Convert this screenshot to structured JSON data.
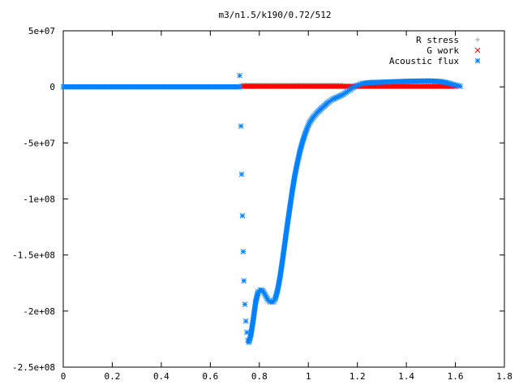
{
  "chart_data": {
    "type": "scatter",
    "title": "m3/n1.5/k190/0.72/512",
    "xlabel": "",
    "ylabel": "",
    "xlim": [
      0,
      1.8
    ],
    "ylim": [
      -250000000,
      50000000
    ],
    "x_ticks": [
      "0",
      "0.2",
      "0.4",
      "0.6",
      "0.8",
      "1",
      "1.2",
      "1.4",
      "1.6",
      "1.8"
    ],
    "y_ticks": [
      "5e+07",
      "0",
      "-5e+07",
      "-1e+08",
      "-1.5e+08",
      "-2e+08",
      "-2.5e+08"
    ],
    "grid": false,
    "legend_position": "top-right",
    "series": [
      {
        "name": "R stress",
        "marker": "plus",
        "color": "#a0a0a0",
        "points": [
          [
            0.73,
            1500000
          ],
          [
            0.8,
            1500000
          ],
          [
            0.9,
            1500000
          ],
          [
            1.0,
            1500000
          ],
          [
            1.1,
            1500000
          ],
          [
            1.14,
            1500000
          ]
        ]
      },
      {
        "name": "G work",
        "marker": "cross",
        "color": "#ff0000",
        "points": [
          [
            0.73,
            500000
          ],
          [
            0.8,
            500000
          ],
          [
            0.9,
            500000
          ],
          [
            1.0,
            500000
          ],
          [
            1.1,
            500000
          ],
          [
            1.2,
            500000
          ],
          [
            1.3,
            500000
          ],
          [
            1.4,
            500000
          ],
          [
            1.5,
            500000
          ],
          [
            1.6,
            500000
          ]
        ]
      },
      {
        "name": "Acoustic flux",
        "marker": "star",
        "color": "#0080ff",
        "points": [
          [
            0.0,
            0
          ],
          [
            0.72,
            0
          ],
          [
            0.72,
            10000000
          ],
          [
            0.725,
            -35000000
          ],
          [
            0.728,
            -78000000
          ],
          [
            0.731,
            -115000000
          ],
          [
            0.734,
            -147000000
          ],
          [
            0.737,
            -173000000
          ],
          [
            0.741,
            -194000000
          ],
          [
            0.745,
            -209000000
          ],
          [
            0.749,
            -219000000
          ],
          [
            0.753,
            -226000000
          ],
          [
            0.757,
            -228000000
          ],
          [
            0.765,
            -222000000
          ],
          [
            0.775,
            -208000000
          ],
          [
            0.785,
            -192000000
          ],
          [
            0.795,
            -183000000
          ],
          [
            0.805,
            -181000000
          ],
          [
            0.815,
            -182000000
          ],
          [
            0.825,
            -186000000
          ],
          [
            0.835,
            -190000000
          ],
          [
            0.845,
            -192000000
          ],
          [
            0.855,
            -192000000
          ],
          [
            0.865,
            -189000000
          ],
          [
            0.875,
            -181000000
          ],
          [
            0.885,
            -169000000
          ],
          [
            0.895,
            -154000000
          ],
          [
            0.905,
            -138000000
          ],
          [
            0.915,
            -122000000
          ],
          [
            0.925,
            -107000000
          ],
          [
            0.935,
            -92000000
          ],
          [
            0.945,
            -79000000
          ],
          [
            0.955,
            -68000000
          ],
          [
            0.965,
            -58000000
          ],
          [
            0.975,
            -50000000
          ],
          [
            0.985,
            -43000000
          ],
          [
            0.995,
            -37000000
          ],
          [
            1.005,
            -32000000
          ],
          [
            1.02,
            -27000000
          ],
          [
            1.04,
            -22000000
          ],
          [
            1.06,
            -18000000
          ],
          [
            1.08,
            -14000000
          ],
          [
            1.1,
            -11000000
          ],
          [
            1.12,
            -9000000
          ],
          [
            1.14,
            -7000000
          ],
          [
            1.16,
            -4000000
          ],
          [
            1.18,
            -1000000
          ],
          [
            1.2,
            1500000
          ],
          [
            1.22,
            3000000
          ],
          [
            1.25,
            3800000
          ],
          [
            1.3,
            4200000
          ],
          [
            1.35,
            4600000
          ],
          [
            1.4,
            5000000
          ],
          [
            1.45,
            5200000
          ],
          [
            1.5,
            5300000
          ],
          [
            1.54,
            4800000
          ],
          [
            1.57,
            3500000
          ],
          [
            1.6,
            1500000
          ],
          [
            1.62,
            500000
          ]
        ]
      }
    ]
  }
}
